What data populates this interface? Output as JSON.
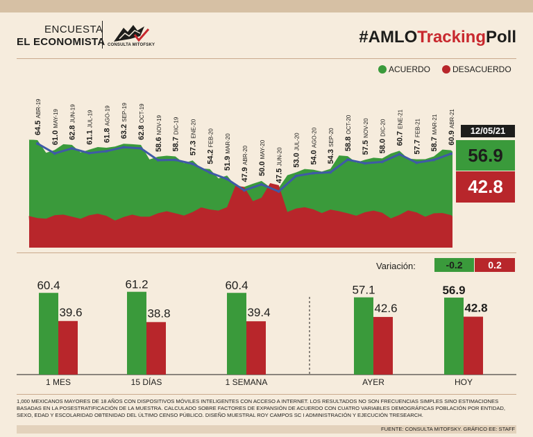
{
  "header": {
    "brand_line1": "ENCUESTA",
    "brand_line2": "EL ECONOMISTA",
    "logo_text": "CONSULTA MITOFSKY",
    "hashtag_prefix": "#AMLO",
    "hashtag_accent": "Tracking",
    "hashtag_suffix": "Poll"
  },
  "legend": {
    "acuerdo": "ACUERDO",
    "desacuerdo": "DESACUERDO"
  },
  "colors": {
    "green": "#3a9a3b",
    "red": "#b8262b",
    "line": "#3f5aa6",
    "background": "#f6ecdd"
  },
  "latest": {
    "date": "12/05/21",
    "acuerdo": "56.9",
    "desacuerdo": "42.8"
  },
  "variation": {
    "label": "Variación:",
    "acuerdo": "-0.2",
    "desacuerdo": "0.2"
  },
  "chart_data": [
    {
      "type": "line",
      "series": [
        {
          "name": "ACUERDO",
          "values": [
            64.5,
            61.0,
            62.8,
            61.1,
            61.8,
            63.2,
            62.8,
            58.6,
            58.7,
            57.3,
            54.2,
            51.9,
            47.9,
            50.0,
            47.5,
            53.0,
            54.0,
            54.3,
            58.8,
            57.5,
            58.0,
            60.7,
            57.7,
            58.7,
            60.9
          ]
        }
      ],
      "categories": [
        "ABR-19",
        "MAY-19",
        "JUN-19",
        "JUL-19",
        "AGO-19",
        "SEP-19",
        "OCT-19",
        "NOV-19",
        "DIC-19",
        "ENE-20",
        "FEB-20",
        "MAR-20",
        "ABR-20",
        "MAY-20",
        "JUN-20",
        "JUL-20",
        "AGO-20",
        "SEP-20",
        "OCT-20",
        "NOV-20",
        "DIC-20",
        "ENE-21",
        "FEB-21",
        "MAR-21",
        "ABR-21"
      ],
      "point_labels": [
        "64.5",
        "61.0",
        "62.8",
        "61.1",
        "61.8",
        "63.2",
        "62.8",
        "58.6",
        "58.7",
        "57.3",
        "54.2",
        "51.9",
        "47.9",
        "50.0",
        "47.5",
        "53.0",
        "54.0",
        "54.3",
        "58.8",
        "57.5",
        "58.0",
        "60.7",
        "57.7",
        "58.7",
        "60.9"
      ],
      "area_series": [
        {
          "name": "ACUERDO"
        },
        {
          "name": "DESACUERDO"
        }
      ]
    },
    {
      "type": "bar",
      "categories": [
        "1 MES",
        "15 DÍAS",
        "1 SEMANA",
        "AYER",
        "HOY"
      ],
      "series": [
        {
          "name": "ACUERDO",
          "values": [
            60.4,
            61.2,
            60.4,
            57.1,
            56.9
          ]
        },
        {
          "name": "DESACUERDO",
          "values": [
            39.6,
            38.8,
            39.4,
            42.6,
            42.8
          ]
        }
      ],
      "value_labels": {
        "acuerdo": [
          "60.4",
          "61.2",
          "60.4",
          "57.1",
          "56.9"
        ],
        "desacuerdo": [
          "39.6",
          "38.8",
          "39.4",
          "42.6",
          "42.8"
        ]
      },
      "highlighted_category": "HOY"
    }
  ],
  "footnote": "1,000 mexicanos mayores de 18 años con dispositivos móviles inteligentes con acceso a internet. Los resultados no son frecuencias simples sino estimaciones basadas en la posestratificación de la muestra. Calculado sobre factores de expansión de acuerdo con cuatro variables demográficas población por entidad, sexo, edad y escolaridad obtenidad del último censo público. Diseño muestral Roy Campos SC I Administración y ejecución TResearch.",
  "source": "FUENTE: CONSULTA MITOFSKY. GRÁFICO EE: STAFF"
}
